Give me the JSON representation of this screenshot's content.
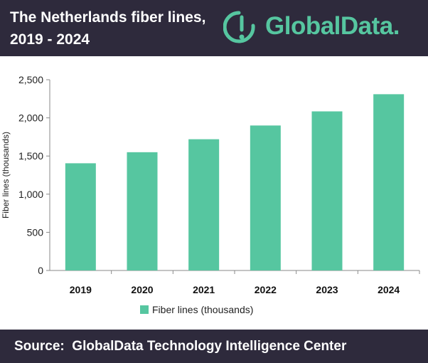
{
  "header": {
    "title_line1": "The Netherlands fiber lines,",
    "title_line2": "2019 - 2024",
    "logo_text": "GlobalData.",
    "colors": {
      "background": "#2e2a3c",
      "accent": "#56c6a0"
    }
  },
  "chart_data": {
    "type": "bar",
    "categories": [
      "2019",
      "2020",
      "2021",
      "2022",
      "2023",
      "2024"
    ],
    "series": [
      {
        "name": "Fiber lines (thousands)",
        "values": [
          1405,
          1550,
          1720,
          1900,
          2085,
          2310
        ],
        "color": "#56c6a0"
      }
    ],
    "ylabel": "Fiber lines (thousands)",
    "ylim": [
      0,
      2500
    ],
    "yticks": [
      0,
      500,
      1000,
      1500,
      2000,
      2500
    ],
    "ytick_labels": [
      "0",
      "500",
      "1,000",
      "1,500",
      "2,000",
      "2,500"
    ],
    "grid": false,
    "legend": "bottom"
  },
  "footer": {
    "source": "Source:  GlobalData Technology Intelligence Center"
  }
}
